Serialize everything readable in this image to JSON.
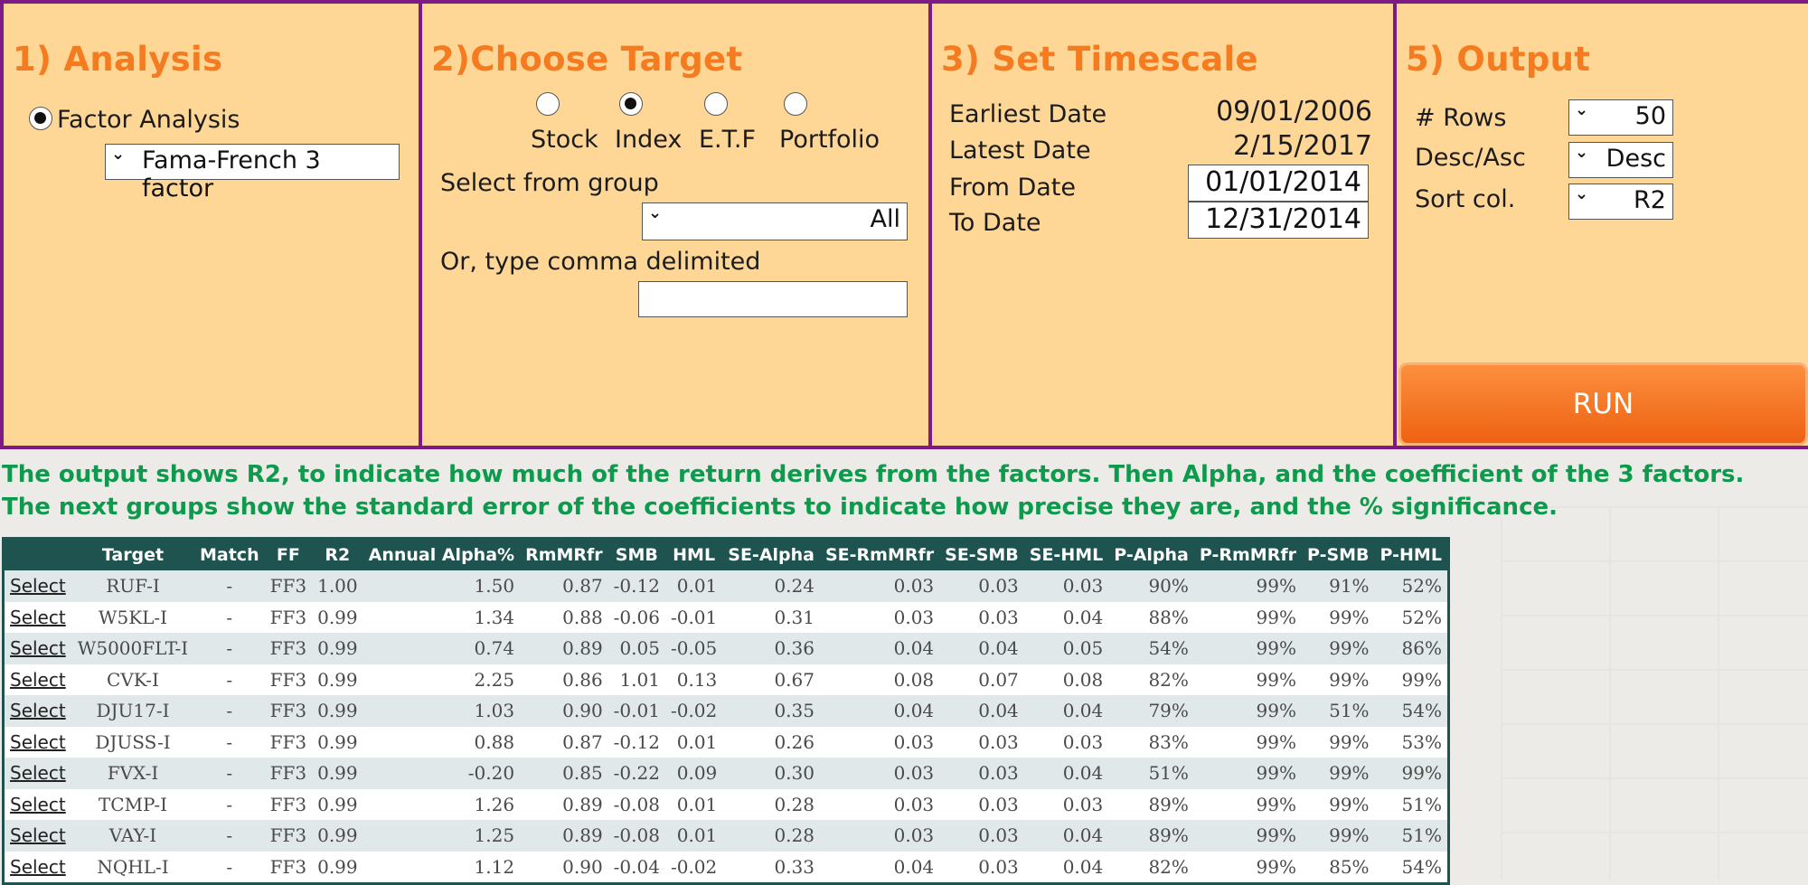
{
  "analysis": {
    "title": "1) Analysis",
    "radio_label": "Factor Analysis",
    "model_select": "Fama-French 3 factor"
  },
  "target": {
    "title": "2)Choose Target",
    "options": [
      "Stock",
      "Index",
      "E.T.F",
      "Portfolio"
    ],
    "selected": "Index",
    "group_label": "Select from group",
    "group_value": "All",
    "type_label": "Or, type comma delimited",
    "type_value": ""
  },
  "timescale": {
    "title": "3) Set Timescale",
    "earliest_label": "Earliest Date",
    "earliest_value": "09/01/2006",
    "latest_label": "Latest Date",
    "latest_value": "2/15/2017",
    "from_label": "From Date",
    "from_value": "01/01/2014",
    "to_label": "To Date",
    "to_value": "12/31/2014"
  },
  "output": {
    "title": "5) Output",
    "rows_label": "# Rows",
    "rows_value": "50",
    "order_label": "Desc/Asc",
    "order_value": "Desc",
    "sort_label": "Sort col.",
    "sort_value": "R2",
    "run_label": "RUN"
  },
  "info": {
    "line1": "The output shows R2, to indicate how much of the return derives from the factors. Then Alpha, and the coefficient of the 3 factors.",
    "line2": "The next groups show the standard error of the coefficients to indicate how precise they are, and the % significance."
  },
  "table": {
    "headers": [
      "",
      "Target",
      "Match",
      "FF",
      "R2",
      "Annual Alpha%",
      "RmMRfr",
      "SMB",
      "HML",
      "SE-Alpha",
      "SE-RmMRfr",
      "SE-SMB",
      "SE-HML",
      "P-Alpha",
      "P-RmMRfr",
      "P-SMB",
      "P-HML"
    ],
    "rows": [
      [
        "Select",
        "RUF-I",
        "-",
        "FF3",
        "1.00",
        "1.50",
        "0.87",
        "-0.12",
        "0.01",
        "0.24",
        "0.03",
        "0.03",
        "0.03",
        "90%",
        "99%",
        "91%",
        "52%"
      ],
      [
        "Select",
        "W5KL-I",
        "-",
        "FF3",
        "0.99",
        "1.34",
        "0.88",
        "-0.06",
        "-0.01",
        "0.31",
        "0.03",
        "0.03",
        "0.04",
        "88%",
        "99%",
        "99%",
        "52%"
      ],
      [
        "Select",
        "W5000FLT-I",
        "-",
        "FF3",
        "0.99",
        "0.74",
        "0.89",
        "0.05",
        "-0.05",
        "0.36",
        "0.04",
        "0.04",
        "0.05",
        "54%",
        "99%",
        "99%",
        "86%"
      ],
      [
        "Select",
        "CVK-I",
        "-",
        "FF3",
        "0.99",
        "2.25",
        "0.86",
        "1.01",
        "0.13",
        "0.67",
        "0.08",
        "0.07",
        "0.08",
        "82%",
        "99%",
        "99%",
        "99%"
      ],
      [
        "Select",
        "DJU17-I",
        "-",
        "FF3",
        "0.99",
        "1.03",
        "0.90",
        "-0.01",
        "-0.02",
        "0.35",
        "0.04",
        "0.04",
        "0.04",
        "79%",
        "99%",
        "51%",
        "54%"
      ],
      [
        "Select",
        "DJUSS-I",
        "-",
        "FF3",
        "0.99",
        "0.88",
        "0.87",
        "-0.12",
        "0.01",
        "0.26",
        "0.03",
        "0.03",
        "0.03",
        "83%",
        "99%",
        "99%",
        "53%"
      ],
      [
        "Select",
        "FVX-I",
        "-",
        "FF3",
        "0.99",
        "-0.20",
        "0.85",
        "-0.22",
        "0.09",
        "0.30",
        "0.03",
        "0.03",
        "0.04",
        "51%",
        "99%",
        "99%",
        "99%"
      ],
      [
        "Select",
        "TCMP-I",
        "-",
        "FF3",
        "0.99",
        "1.26",
        "0.89",
        "-0.08",
        "0.01",
        "0.28",
        "0.03",
        "0.03",
        "0.03",
        "89%",
        "99%",
        "99%",
        "51%"
      ],
      [
        "Select",
        "VAY-I",
        "-",
        "FF3",
        "0.99",
        "1.25",
        "0.89",
        "-0.08",
        "0.01",
        "0.28",
        "0.03",
        "0.03",
        "0.04",
        "89%",
        "99%",
        "99%",
        "51%"
      ],
      [
        "Select",
        "NQHL-I",
        "-",
        "FF3",
        "0.99",
        "1.12",
        "0.90",
        "-0.04",
        "-0.02",
        "0.33",
        "0.04",
        "0.03",
        "0.04",
        "82%",
        "99%",
        "85%",
        "54%"
      ]
    ]
  }
}
